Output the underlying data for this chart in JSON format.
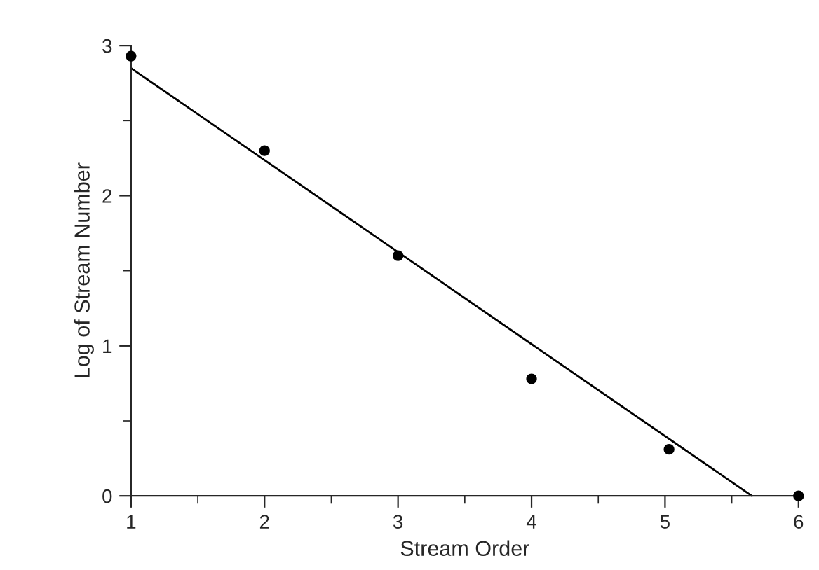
{
  "chart_data": {
    "type": "scatter",
    "xlabel": "Stream Order",
    "ylabel": "Log of Stream Number",
    "series": [
      {
        "color": "#000000",
        "x": [
          1,
          2,
          3,
          4,
          5.03,
          6
        ],
        "values": [
          2.93,
          2.3,
          1.6,
          0.78,
          0.31,
          0
        ]
      },
      {
        "type": "line",
        "color": "#000000",
        "x": [
          1,
          5.65
        ],
        "values": [
          2.85,
          0
        ]
      }
    ],
    "xlim": [
      1,
      6
    ],
    "xticks": [
      1,
      2,
      3,
      4,
      5,
      6
    ],
    "ylim": [
      0,
      3
    ],
    "yticks": [
      0,
      1,
      2,
      3
    ],
    "grid": false,
    "legend": false
  }
}
